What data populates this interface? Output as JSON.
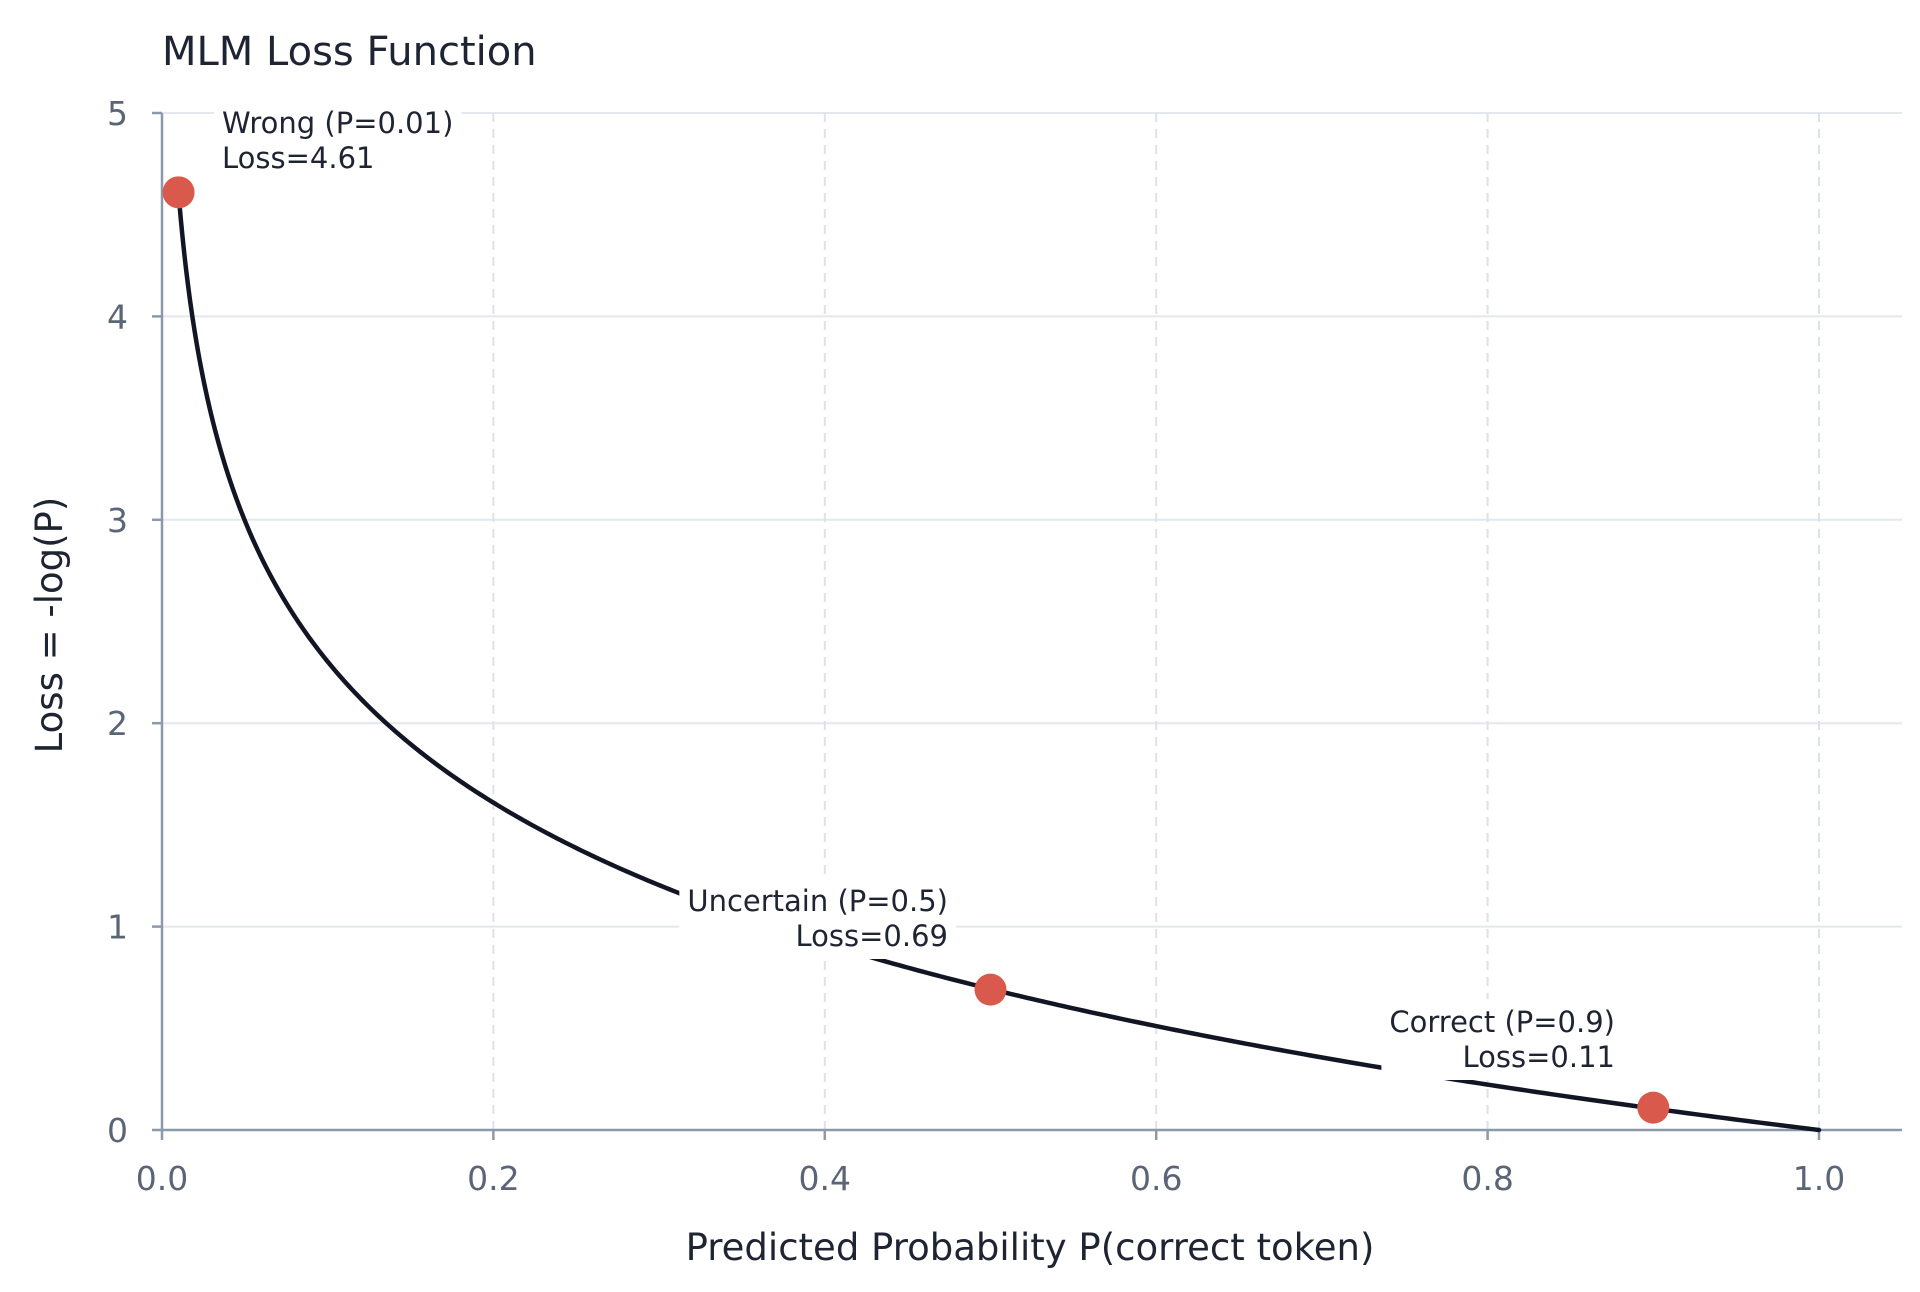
{
  "chart_data": {
    "type": "line",
    "title": "MLM Loss Function",
    "xlabel": "Predicted Probability P(correct token)",
    "ylabel": "Loss = -log(P)",
    "xlim": [
      0.0,
      1.05
    ],
    "ylim": [
      0,
      5
    ],
    "xticks": [
      "0.0",
      "0.2",
      "0.4",
      "0.6",
      "0.8",
      "1.0"
    ],
    "yticks": [
      "0",
      "1",
      "2",
      "3",
      "4",
      "5"
    ],
    "grid": true,
    "series": [
      {
        "function": "-log(x)",
        "x_range": [
          0.01,
          1.0
        ],
        "color": "#121624"
      }
    ],
    "points": [
      {
        "x": 0.01,
        "y": 4.61,
        "label": "Wrong (P=0.01)",
        "sublabel": "Loss=4.61",
        "color": "#d95a4c"
      },
      {
        "x": 0.5,
        "y": 0.69,
        "label": "Uncertain (P=0.5)",
        "sublabel": "Loss=0.69",
        "color": "#d95a4c"
      },
      {
        "x": 0.9,
        "y": 0.11,
        "label": "Correct (P=0.9)",
        "sublabel": "Loss=0.11",
        "color": "#d95a4c"
      }
    ]
  }
}
